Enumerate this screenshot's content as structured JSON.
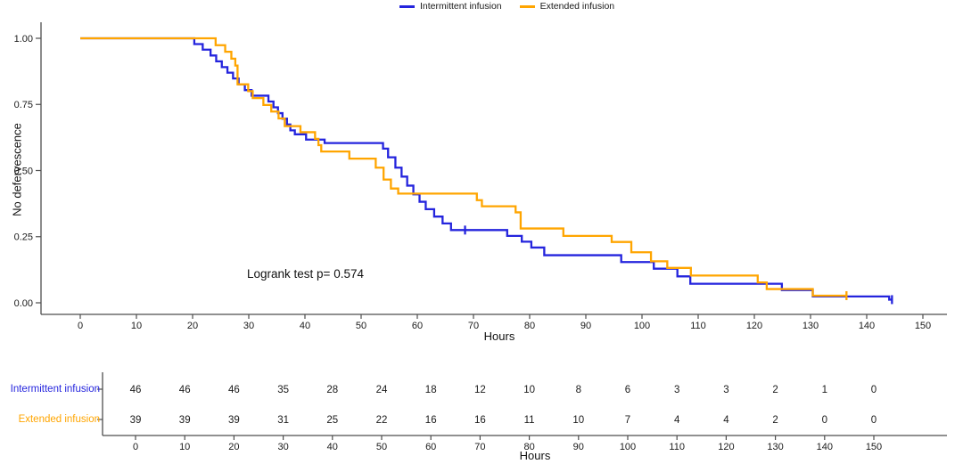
{
  "chart_data": {
    "type": "line",
    "subtype": "kaplan-meier-step",
    "title": "",
    "xlabel": "Hours",
    "ylabel": "No defervescence",
    "xlim": [
      0,
      150
    ],
    "ylim": [
      0,
      1
    ],
    "x_tick_labels": [
      "0",
      "10",
      "20",
      "30",
      "40",
      "50",
      "60",
      "70",
      "80",
      "90",
      "100",
      "110",
      "120",
      "130",
      "140",
      "150"
    ],
    "y_tick_labels": [
      "0.00",
      "0.25",
      "0.50",
      "0.75",
      "1.00"
    ],
    "grid": "off",
    "legend_position": "top-center",
    "annotation": "Logrank test p= 0.574",
    "axis_color": "#4d4d4d",
    "text_color": "#1a1a1a",
    "series": [
      {
        "name": "Intermittent infusion",
        "color": "#2424dd",
        "steps": [
          [
            0,
            1.0
          ],
          [
            20.3,
            0.978
          ],
          [
            21.8,
            0.957
          ],
          [
            23.2,
            0.935
          ],
          [
            24.2,
            0.913
          ],
          [
            25.2,
            0.891
          ],
          [
            26.2,
            0.87
          ],
          [
            27.2,
            0.848
          ],
          [
            28.2,
            0.826
          ],
          [
            29.3,
            0.804
          ],
          [
            30.5,
            0.783
          ],
          [
            33.5,
            0.761
          ],
          [
            34.4,
            0.739
          ],
          [
            35.2,
            0.717
          ],
          [
            36.0,
            0.696
          ],
          [
            36.8,
            0.674
          ],
          [
            37.4,
            0.652
          ],
          [
            38.2,
            0.637
          ],
          [
            40.2,
            0.617
          ],
          [
            43.5,
            0.604
          ],
          [
            53.9,
            0.583
          ],
          [
            54.8,
            0.55
          ],
          [
            56.1,
            0.511
          ],
          [
            57.2,
            0.477
          ],
          [
            58.2,
            0.443
          ],
          [
            59.3,
            0.41
          ],
          [
            60.4,
            0.382
          ],
          [
            61.5,
            0.354
          ],
          [
            63.0,
            0.326
          ],
          [
            64.5,
            0.3
          ],
          [
            66.0,
            0.275
          ],
          [
            76.0,
            0.253
          ],
          [
            78.6,
            0.231
          ],
          [
            80.3,
            0.209
          ],
          [
            82.6,
            0.18
          ],
          [
            96.3,
            0.154
          ],
          [
            102.1,
            0.129
          ],
          [
            106.3,
            0.1
          ],
          [
            108.6,
            0.072
          ],
          [
            124.9,
            0.048
          ],
          [
            130.4,
            0.024
          ],
          [
            144.0,
            0.012
          ]
        ],
        "end_time": 144.6,
        "censor_marks": [
          [
            68.5,
            0.275
          ],
          [
            144.5,
            0.012
          ]
        ]
      },
      {
        "name": "Extended infusion",
        "color": "#ffa500",
        "steps": [
          [
            0,
            1.0
          ],
          [
            24.1,
            0.974
          ],
          [
            25.8,
            0.949
          ],
          [
            26.9,
            0.923
          ],
          [
            27.6,
            0.897
          ],
          [
            28.0,
            0.826
          ],
          [
            29.9,
            0.8
          ],
          [
            30.7,
            0.774
          ],
          [
            32.6,
            0.748
          ],
          [
            34.0,
            0.723
          ],
          [
            35.3,
            0.697
          ],
          [
            36.4,
            0.668
          ],
          [
            39.2,
            0.645
          ],
          [
            41.8,
            0.62
          ],
          [
            42.4,
            0.596
          ],
          [
            42.9,
            0.572
          ],
          [
            47.9,
            0.545
          ],
          [
            52.6,
            0.511
          ],
          [
            54.0,
            0.466
          ],
          [
            55.3,
            0.432
          ],
          [
            56.6,
            0.413
          ],
          [
            70.6,
            0.388
          ],
          [
            71.5,
            0.365
          ],
          [
            77.5,
            0.342
          ],
          [
            78.4,
            0.281
          ],
          [
            86.0,
            0.253
          ],
          [
            94.6,
            0.23
          ],
          [
            98.1,
            0.191
          ],
          [
            101.6,
            0.157
          ],
          [
            104.5,
            0.132
          ],
          [
            108.7,
            0.103
          ],
          [
            120.6,
            0.077
          ],
          [
            122.2,
            0.052
          ],
          [
            130.4,
            0.027
          ]
        ],
        "end_time": 136.4,
        "censor_marks": [
          [
            136.4,
            0.027
          ]
        ]
      }
    ]
  },
  "risk_table": {
    "xlabel": "Hours",
    "times": [
      0,
      10,
      20,
      30,
      40,
      50,
      60,
      70,
      80,
      90,
      100,
      110,
      120,
      130,
      140,
      150
    ],
    "x_tick_labels": [
      "0",
      "10",
      "20",
      "30",
      "40",
      "50",
      "60",
      "70",
      "80",
      "90",
      "100",
      "110",
      "120",
      "130",
      "140",
      "150"
    ],
    "rows": [
      {
        "label": "Intermittent infusion",
        "color": "#2424dd",
        "counts": [
          46,
          46,
          46,
          35,
          28,
          24,
          18,
          12,
          10,
          8,
          6,
          3,
          3,
          2,
          1,
          0
        ]
      },
      {
        "label": "Extended infusion",
        "color": "#ffa500",
        "counts": [
          39,
          39,
          39,
          31,
          25,
          22,
          16,
          16,
          11,
          10,
          7,
          4,
          4,
          2,
          0,
          0
        ]
      }
    ]
  }
}
